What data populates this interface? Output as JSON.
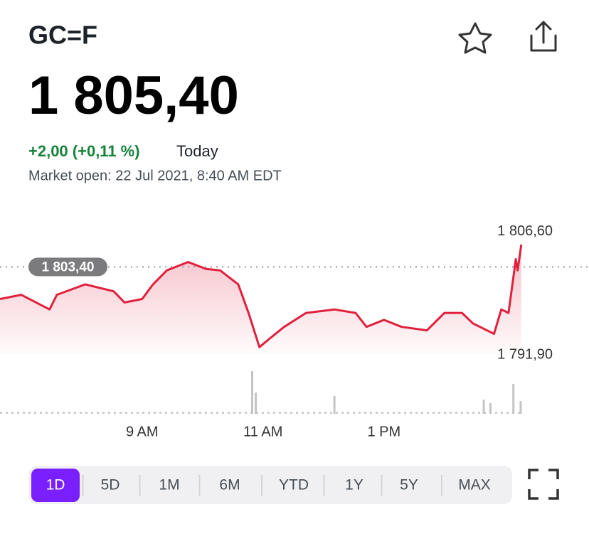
{
  "header": {
    "ticker": "GC=F",
    "price": "1 805,40",
    "change": "+2,00 (+0,11 %)",
    "period": "Today",
    "status": "Market open: 22 Jul 2021, 8:40 AM EDT"
  },
  "chart_data": {
    "type": "line",
    "x": [
      6.65,
      7.0,
      7.47,
      7.59,
      8.06,
      8.53,
      8.71,
      9.0,
      9.18,
      9.41,
      9.76,
      10.06,
      10.29,
      10.59,
      10.76,
      10.94,
      11.12,
      11.35,
      11.71,
      12.18,
      12.53,
      12.71,
      13.0,
      13.29,
      13.71,
      14.0,
      14.29,
      14.47,
      14.82,
      14.94,
      15.06,
      15.18,
      15.21,
      15.27
    ],
    "series": [
      {
        "color": "#e0203c",
        "values": [
          1798.8,
          1799.4,
          1797.3,
          1799.4,
          1800.9,
          1799.9,
          1798.3,
          1798.8,
          1800.9,
          1802.9,
          1804.1,
          1803.1,
          1802.9,
          1800.9,
          1796.8,
          1791.9,
          1793.2,
          1794.8,
          1796.8,
          1797.3,
          1796.8,
          1794.8,
          1795.8,
          1794.8,
          1794.3,
          1796.8,
          1796.8,
          1795.3,
          1793.8,
          1797.3,
          1796.8,
          1804.5,
          1802.9,
          1806.6
        ]
      }
    ],
    "previous_close": {
      "value": 1803.4,
      "label": "1 803,40"
    },
    "high": {
      "value": 1806.6,
      "label": "1 806,60"
    },
    "low": {
      "value": 1791.9,
      "label": "1 791,90"
    },
    "xlim": [
      6.65,
      16.39
    ],
    "ylim": [
      1791.0,
      1807.0
    ],
    "xticks": [
      {
        "value": 9,
        "label": "9 AM"
      },
      {
        "value": 11,
        "label": "11 AM"
      },
      {
        "value": 13,
        "label": "1 PM"
      }
    ],
    "volume": {
      "x": [
        10.82,
        10.88,
        12.18,
        14.65,
        14.76,
        15.14,
        15.26
      ],
      "values": [
        60,
        30,
        25,
        20,
        15,
        42,
        18
      ],
      "color": "#c4c4c4",
      "lim": [
        0,
        62
      ]
    }
  },
  "ranges": {
    "items": [
      "1D",
      "5D",
      "1M",
      "6M",
      "YTD",
      "1Y",
      "5Y",
      "MAX"
    ],
    "selected": 0
  }
}
